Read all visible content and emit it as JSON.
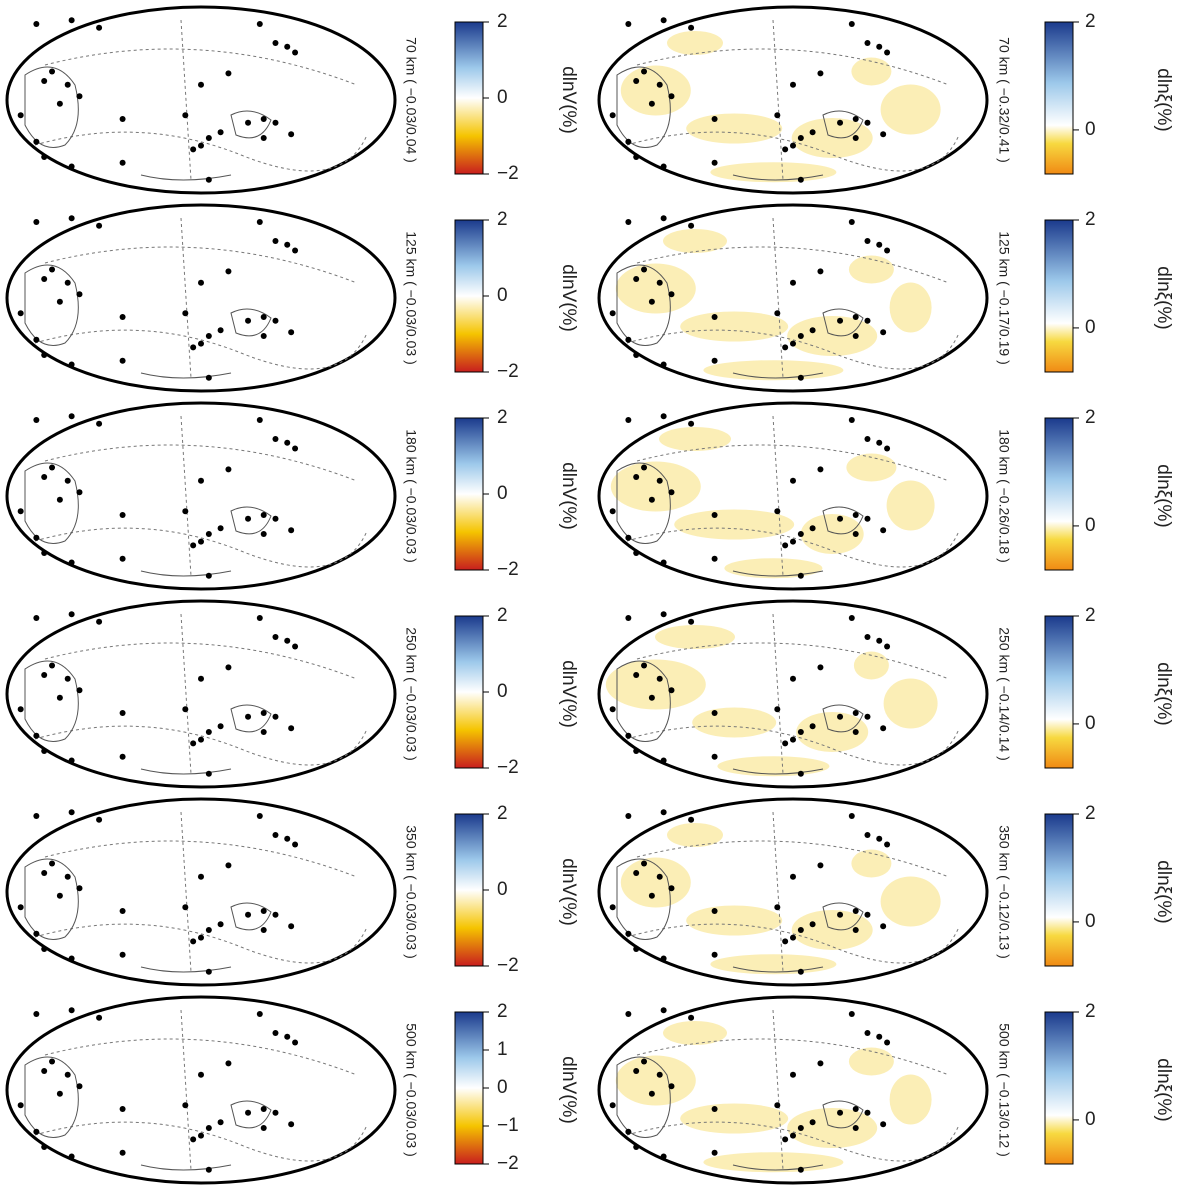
{
  "columns": [
    {
      "colorbar_label": "dlnV(%)",
      "panels": [
        {
          "depth_label": "70 km ( −0.03/0.04 )",
          "colorbar_ticks": [
            "2",
            "0",
            "−2"
          ]
        },
        {
          "depth_label": "125 km ( −0.03/0.03 )",
          "colorbar_ticks": [
            "2",
            "0",
            "−2"
          ]
        },
        {
          "depth_label": "180 km ( −0.03/0.03 )",
          "colorbar_ticks": [
            "2",
            "0",
            "−2"
          ]
        },
        {
          "depth_label": "250 km ( −0.03/0.03 )",
          "colorbar_ticks": [
            "2",
            "0",
            "−2"
          ]
        },
        {
          "depth_label": "350 km ( −0.03/0.03 )",
          "colorbar_ticks": [
            "2",
            "0",
            "−2"
          ]
        },
        {
          "depth_label": "500 km ( −0.03/0.03 )",
          "colorbar_ticks": [
            "2",
            "1",
            "0",
            "−1",
            "−2"
          ]
        }
      ]
    },
    {
      "colorbar_label": "dlnξ(%)",
      "panels": [
        {
          "depth_label": "70 km ( −0.32/0.41 )",
          "colorbar_ticks": [
            "2",
            "0"
          ]
        },
        {
          "depth_label": "125 km ( −0.17/0.19 )",
          "colorbar_ticks": [
            "2",
            "0"
          ]
        },
        {
          "depth_label": "180 km ( −0.26/0.18 )",
          "colorbar_ticks": [
            "2",
            "0"
          ]
        },
        {
          "depth_label": "250 km ( −0.14/0.14 )",
          "colorbar_ticks": [
            "2",
            "0"
          ]
        },
        {
          "depth_label": "350 km ( −0.12/0.13 )",
          "colorbar_ticks": [
            "2",
            "0"
          ]
        },
        {
          "depth_label": "500 km ( −0.13/0.12 )",
          "colorbar_ticks": [
            "2",
            "0"
          ]
        }
      ]
    }
  ]
}
